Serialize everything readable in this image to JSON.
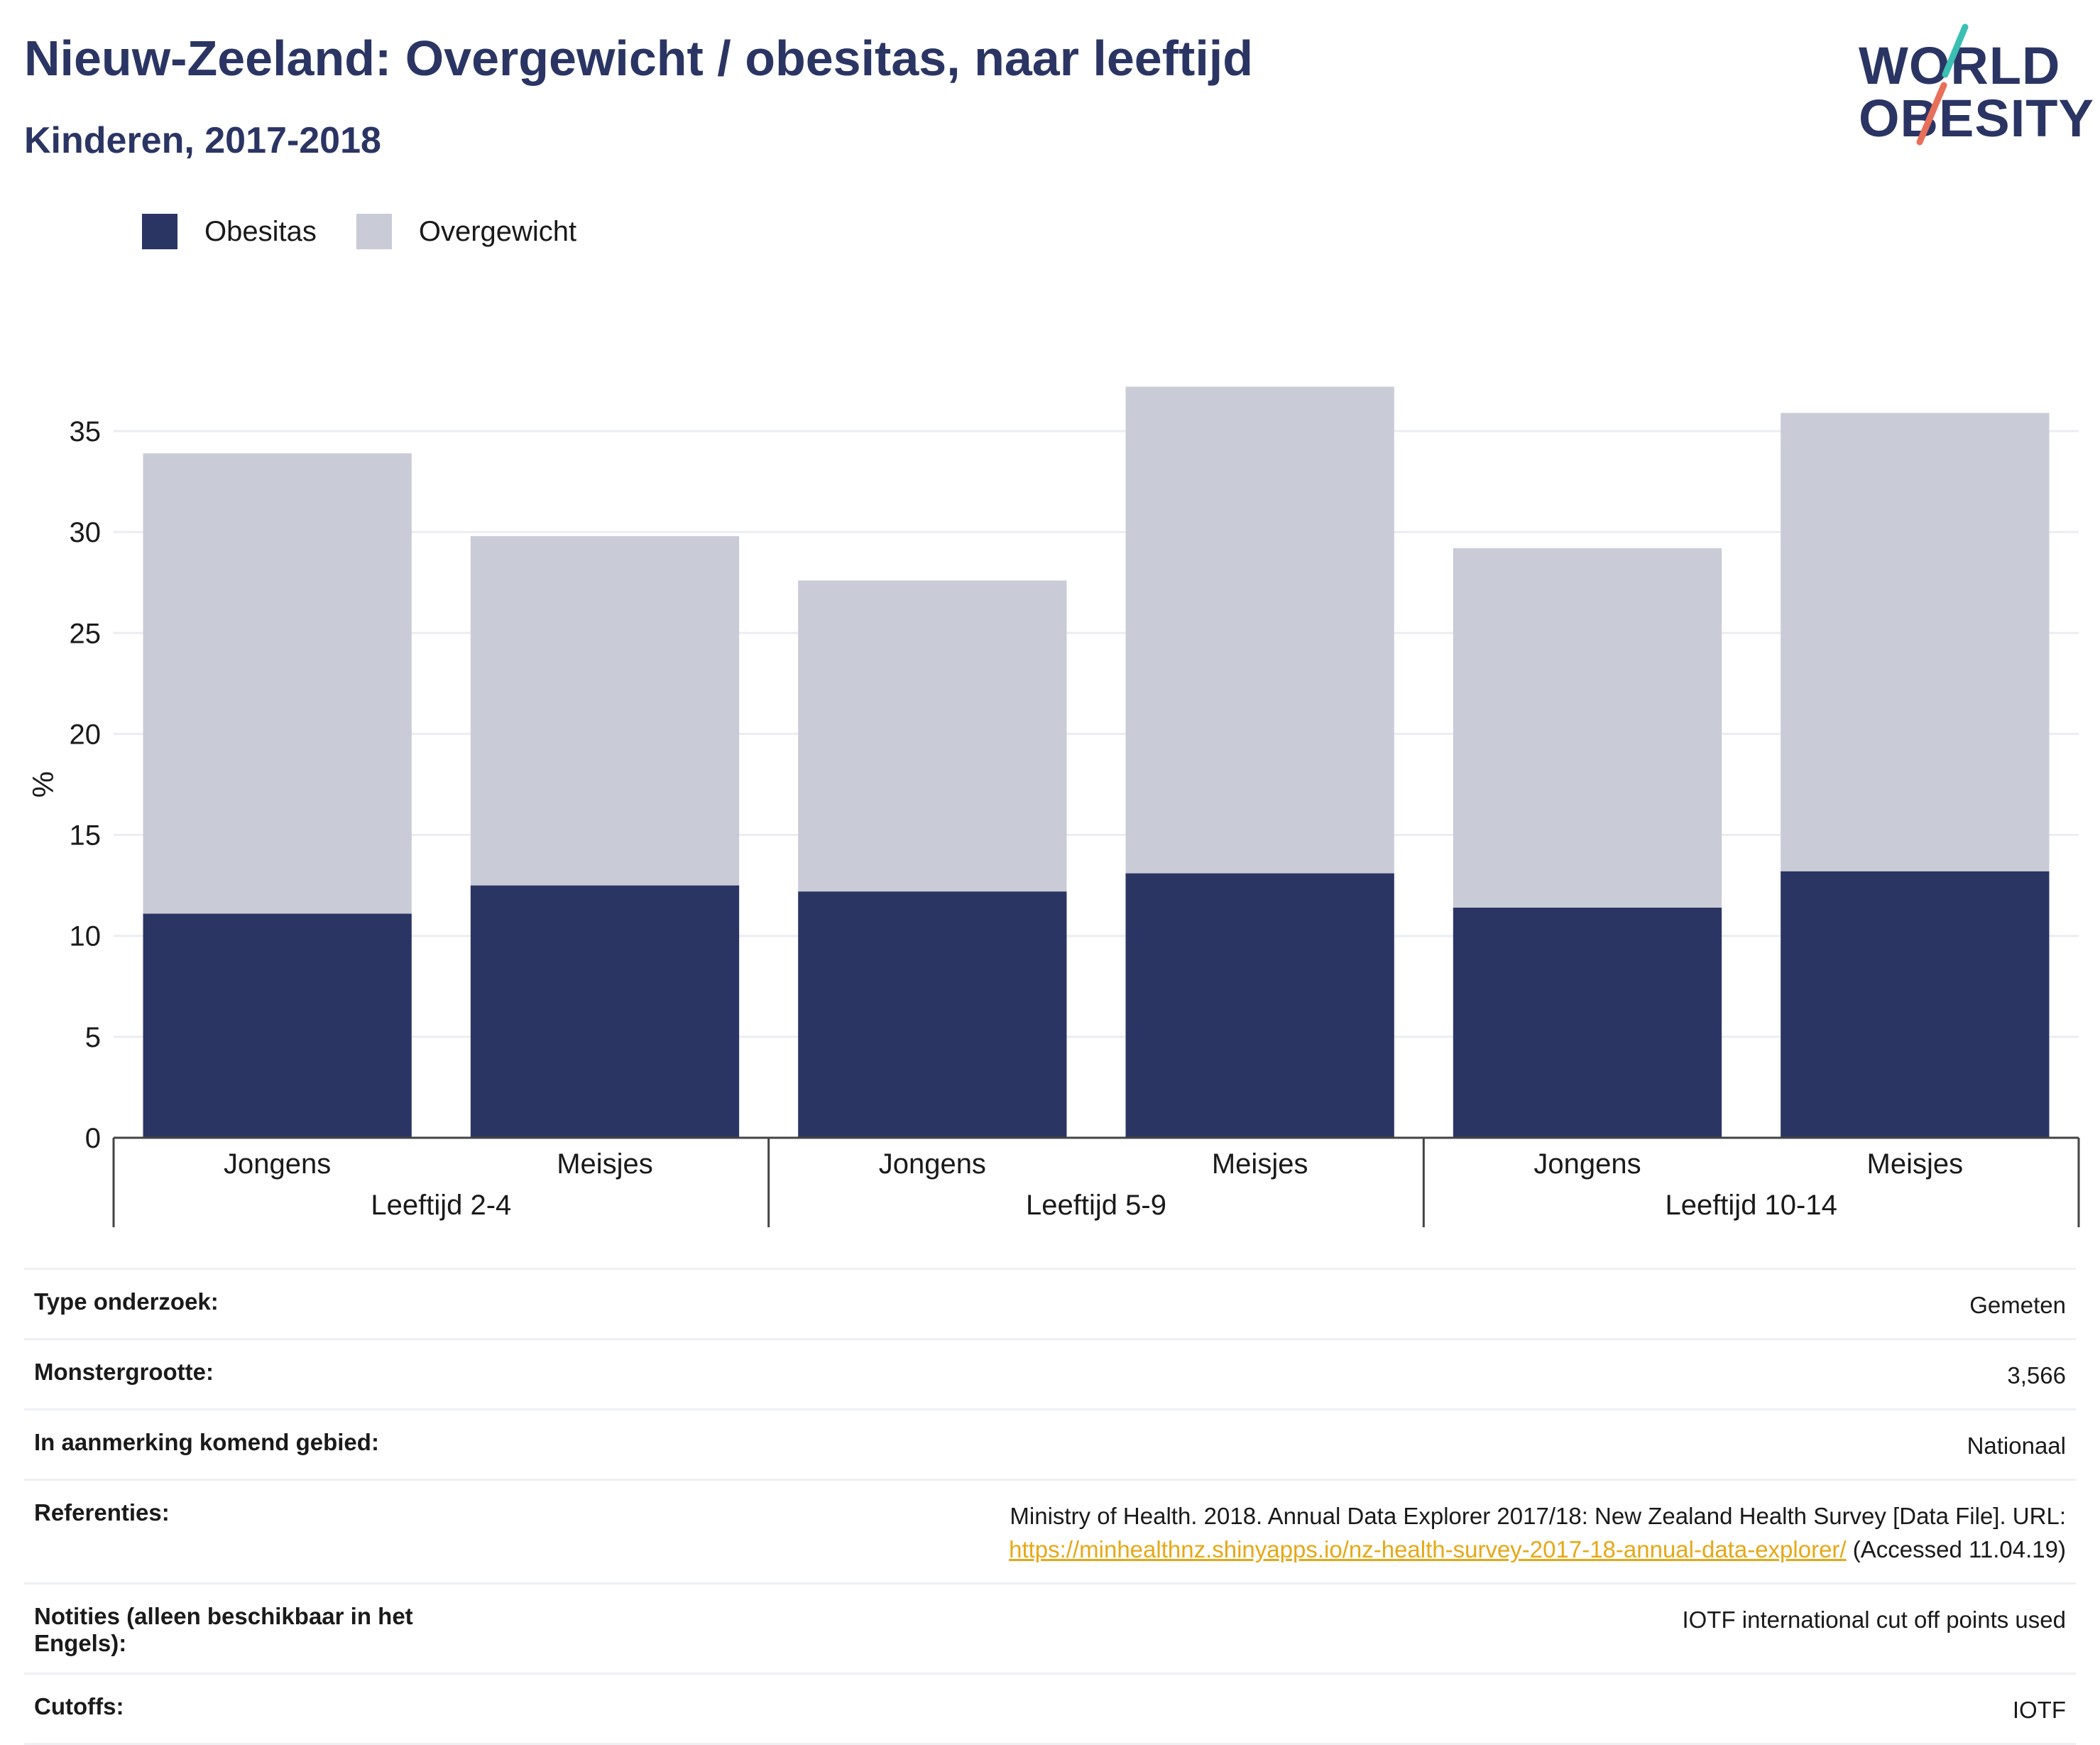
{
  "header": {
    "title": "Nieuw-Zeeland: Overgewicht / obesitas, naar leeftijd",
    "subtitle": "Kinderen, 2017-2018"
  },
  "logo": {
    "line1": "WORLD",
    "line2": "OBESITY",
    "accent_teal": "#3bbfb3",
    "accent_coral": "#e8705a"
  },
  "legend": [
    {
      "label": "Obesitas",
      "color": "#2b3563"
    },
    {
      "label": "Overgewicht",
      "color": "#c9cbd7"
    }
  ],
  "chart_data": {
    "type": "bar",
    "stacked": true,
    "ylabel": "%",
    "ylim": [
      0,
      37.5
    ],
    "yticks": [
      0,
      5,
      10,
      15,
      20,
      25,
      30,
      35
    ],
    "grid": true,
    "legend_position": "top-left",
    "groups": [
      "Leeftijd 2-4",
      "Leeftijd 5-9",
      "Leeftijd 10-14"
    ],
    "categories": [
      "Jongens",
      "Meisjes",
      "Jongens",
      "Meisjes",
      "Jongens",
      "Meisjes"
    ],
    "series": [
      {
        "name": "Obesitas",
        "color": "#2b3563",
        "values": [
          11.1,
          12.5,
          12.2,
          13.1,
          11.4,
          13.2
        ]
      },
      {
        "name": "Overgewicht",
        "color": "#c9cbd7",
        "values": [
          22.8,
          17.3,
          15.4,
          24.1,
          17.8,
          22.7
        ]
      }
    ]
  },
  "meta": [
    {
      "key": "Type onderzoek:",
      "value": "Gemeten"
    },
    {
      "key": "Monstergrootte:",
      "value": "3,566"
    },
    {
      "key": "In aanmerking komend gebied:",
      "value": "Nationaal"
    },
    {
      "key": "Referenties:",
      "value_pre": "Ministry of Health. 2018. Annual Data Explorer 2017/18: New Zealand Health Survey [Data File]. URL:",
      "link": "https://minhealthnz.shinyapps.io/nz-health-survey-2017-18-annual-data-explorer/",
      "value_post": " (Accessed 11.04.19)"
    },
    {
      "key": "Notities (alleen beschikbaar in het Engels):",
      "value": "IOTF international cut off points used"
    },
    {
      "key": "Cutoffs:",
      "value": "IOTF"
    }
  ]
}
